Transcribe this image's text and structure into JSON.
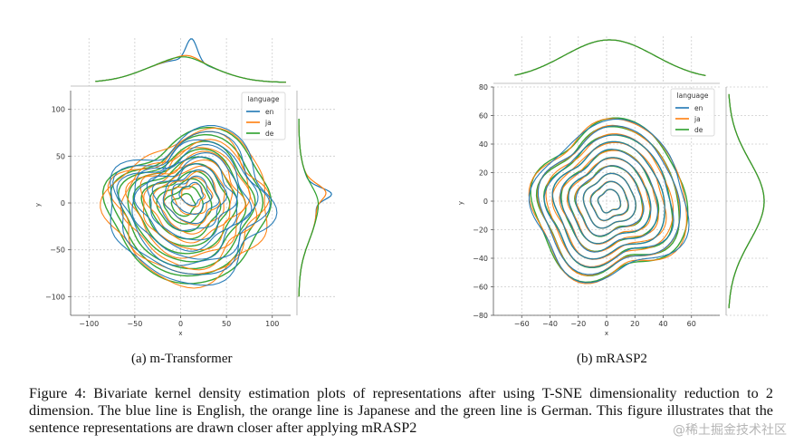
{
  "chart_data": [
    {
      "type": "kde_contour_joint",
      "subcaption": "(a) m-Transformer",
      "xlabel": "x",
      "ylabel": "y",
      "xlim": [
        -120,
        120
      ],
      "ylim": [
        -120,
        120
      ],
      "xticks": [
        -100,
        -50,
        0,
        50,
        100
      ],
      "yticks": [
        -100,
        -50,
        0,
        50,
        100
      ],
      "grid": true,
      "legend": {
        "title": "language",
        "position": "top-right",
        "entries": [
          "en",
          "ja",
          "de"
        ]
      },
      "series": [
        {
          "name": "en",
          "color": "#1f77b4",
          "center": [
            12,
            12
          ],
          "levels": 10,
          "extent_x": [
            -78,
            100
          ],
          "extent_y": [
            -80,
            70
          ],
          "marginal_x_peak": 12,
          "marginal_y_peak": 10
        },
        {
          "name": "ja",
          "color": "#ff7f0e",
          "center": [
            14,
            10
          ],
          "levels": 10,
          "extent_x": [
            -78,
            100
          ],
          "extent_y": [
            -80,
            70
          ],
          "marginal_x_peak": 12,
          "marginal_y_peak": 10
        },
        {
          "name": "de",
          "color": "#2ca02c",
          "center": [
            2,
            -2
          ],
          "levels": 10,
          "extent_x": [
            -78,
            100
          ],
          "extent_y": [
            -80,
            70
          ],
          "marginal_x_peak": 0,
          "marginal_y_peak": 0
        }
      ]
    },
    {
      "type": "kde_contour_joint",
      "subcaption": "(b) mRASP2",
      "xlabel": "x",
      "ylabel": "y",
      "xlim": [
        -80,
        80
      ],
      "ylim": [
        -80,
        80
      ],
      "xticks": [
        -60,
        -40,
        -20,
        0,
        20,
        40,
        60
      ],
      "yticks": [
        -80,
        -60,
        -40,
        -20,
        0,
        20,
        40,
        60,
        80
      ],
      "grid": true,
      "legend": {
        "title": "language",
        "position": "top-right",
        "entries": [
          "en",
          "ja",
          "de"
        ]
      },
      "series": [
        {
          "name": "en",
          "color": "#1f77b4",
          "center": [
            2,
            0
          ],
          "levels": 10,
          "extent_x": [
            -50,
            55
          ],
          "extent_y": [
            -55,
            55
          ]
        },
        {
          "name": "ja",
          "color": "#ff7f0e",
          "center": [
            2,
            0
          ],
          "levels": 10,
          "extent_x": [
            -50,
            55
          ],
          "extent_y": [
            -55,
            55
          ]
        },
        {
          "name": "de",
          "color": "#2ca02c",
          "center": [
            2,
            0
          ],
          "levels": 10,
          "extent_x": [
            -50,
            55
          ],
          "extent_y": [
            -55,
            55
          ]
        }
      ]
    }
  ],
  "figure_caption": "Figure 4: Bivariate kernel density estimation plots of representations after using T-SNE dimensionality reduction to 2 dimension.  The blue line is English, the orange line is Japanese and the green line is German.  This figure illustrates that the sentence representations are drawn closer after applying mRASP2",
  "watermark": "@稀土掘金技术社区"
}
